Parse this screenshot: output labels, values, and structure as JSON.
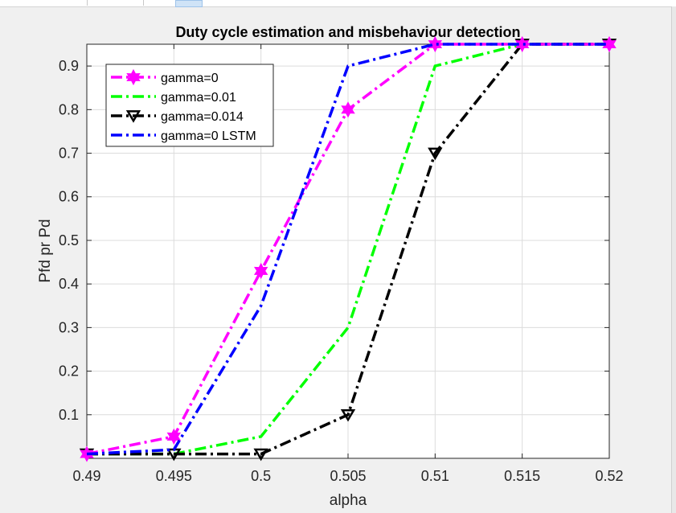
{
  "chart_data": {
    "type": "line",
    "title": "Duty cycle estimation and misbehaviour detection",
    "xlabel": "alpha",
    "ylabel": "Pfd pr Pd",
    "xlim": [
      0.49,
      0.52
    ],
    "ylim": [
      0,
      0.95
    ],
    "x": [
      0.49,
      0.495,
      0.5,
      0.505,
      0.51,
      0.515,
      0.52
    ],
    "xticks": [
      "0.49",
      "0.495",
      "0.5",
      "0.505",
      "0.51",
      "0.515",
      "0.52"
    ],
    "yticks": [
      "0.1",
      "0.2",
      "0.3",
      "0.4",
      "0.5",
      "0.6",
      "0.7",
      "0.8",
      "0.9"
    ],
    "grid": true,
    "legend_position": "top-left",
    "series": [
      {
        "name": "gamma=0",
        "color": "#ff00ff",
        "marker": "hexagram",
        "line": "dash-dot",
        "values": [
          0.01,
          0.05,
          0.43,
          0.8,
          0.95,
          0.95,
          0.95
        ]
      },
      {
        "name": "gamma=0.01",
        "color": "#00ff00",
        "marker": "none",
        "line": "dash-dot",
        "values": [
          0.01,
          0.01,
          0.05,
          0.3,
          0.9,
          0.95,
          0.95
        ]
      },
      {
        "name": "gamma=0.014",
        "color": "#000000",
        "marker": "triangle-down",
        "line": "dash-dot",
        "values": [
          0.01,
          0.01,
          0.01,
          0.1,
          0.7,
          0.95,
          0.95
        ]
      },
      {
        "name": "gamma=0 LSTM",
        "color": "#0000ff",
        "marker": "none",
        "line": "dash-dot",
        "values": [
          0.01,
          0.02,
          0.35,
          0.9,
          0.95,
          0.95,
          0.95
        ]
      }
    ]
  }
}
